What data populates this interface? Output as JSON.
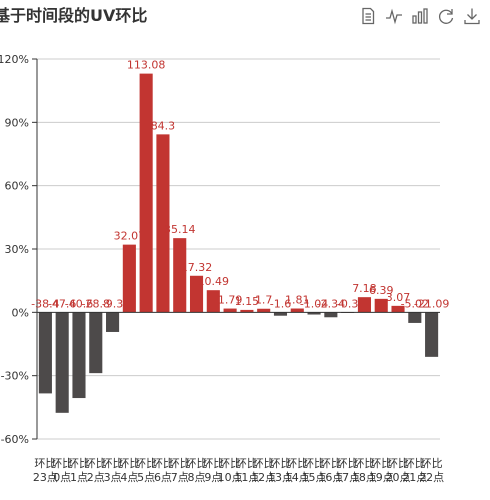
{
  "toolbox": {
    "items": [
      {
        "name": "data-view-icon"
      },
      {
        "name": "line-chart-icon"
      },
      {
        "name": "bar-chart-icon"
      },
      {
        "name": "restore-icon"
      },
      {
        "name": "save-image-icon"
      }
    ],
    "color": "#666666"
  },
  "chart_data": {
    "type": "bar",
    "title": "基于时间段的UV环比",
    "xlabel": "",
    "ylabel": "",
    "ylim": [
      -60,
      120
    ],
    "yticks": [
      -60,
      -30,
      0,
      30,
      60,
      90,
      120
    ],
    "ytick_suffix": "%",
    "grid": true,
    "legend": "none",
    "positive_color": "#c23531",
    "negative_color": "#4d4a4a",
    "categories": [
      "环比23点",
      "环比0点",
      "环比1点",
      "环比2点",
      "环比3点",
      "环比4点",
      "环比5点",
      "环比6点",
      "环比7点",
      "环比8点",
      "环比9点",
      "环比10点",
      "环比11点",
      "环比12点",
      "环比13点",
      "环比14点",
      "环比15点",
      "环比16点",
      "环比17点",
      "环比18点",
      "环比19点",
      "环比20点",
      "环比21点",
      "环比22点"
    ],
    "values": [
      -38.4,
      -47.6,
      -40.6,
      -28.8,
      -9.3,
      32.07,
      113.08,
      84.3,
      35.14,
      17.32,
      10.49,
      1.79,
      1.15,
      1.7,
      -1.6,
      1.81,
      -1.04,
      -2.34,
      -0.3,
      7.18,
      6.39,
      3.07,
      -5.02,
      -21.09
    ],
    "labels": [
      "-38.4",
      "-47.6",
      "-40.6",
      "-28.8",
      "-9.3",
      "32.07",
      "113.08",
      "84.3",
      "35.14",
      "17.32",
      "10.49",
      "1.79",
      "1.15",
      "1.7",
      "-1.6",
      "1.81",
      "-1.04",
      "-2.34",
      "-0.3",
      "7.18",
      "6.39",
      "3.07",
      "-5.02",
      "-21.09"
    ]
  }
}
